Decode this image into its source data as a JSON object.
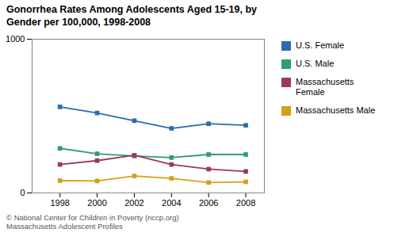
{
  "chart_data": {
    "type": "line",
    "title": "Gonorrhea Rates Among Adolescents Aged 15-19, by\nGender per 100,000, 1998-2008",
    "caption": "© National Center for Children in Poverty (nccp.org)\nMassachusetts Adolescent Profiles",
    "x": [
      1998,
      2000,
      2002,
      2004,
      2006,
      2008
    ],
    "series": [
      {
        "name": "U.S. Female",
        "color": "#2B6CB0",
        "marker": "square",
        "values": [
          560,
          520,
          470,
          420,
          450,
          440
        ]
      },
      {
        "name": "U.S. Male",
        "color": "#2E9E72",
        "marker": "square",
        "values": [
          290,
          255,
          240,
          230,
          250,
          250
        ]
      },
      {
        "name": "Massachusetts\nFemale",
        "color": "#9B3A55",
        "marker": "square",
        "values": [
          185,
          210,
          245,
          185,
          155,
          140
        ]
      },
      {
        "name": "Massachusetts Male",
        "color": "#D4A017",
        "marker": "square",
        "values": [
          80,
          78,
          110,
          95,
          68,
          72
        ]
      }
    ],
    "xlim": [
      1996.5,
      2009
    ],
    "xticks": [
      1998,
      2000,
      2002,
      2004,
      2006,
      2008
    ],
    "ylim": [
      0,
      1000
    ],
    "yticks": [
      0,
      1000
    ],
    "grid": false,
    "legend": "right"
  }
}
